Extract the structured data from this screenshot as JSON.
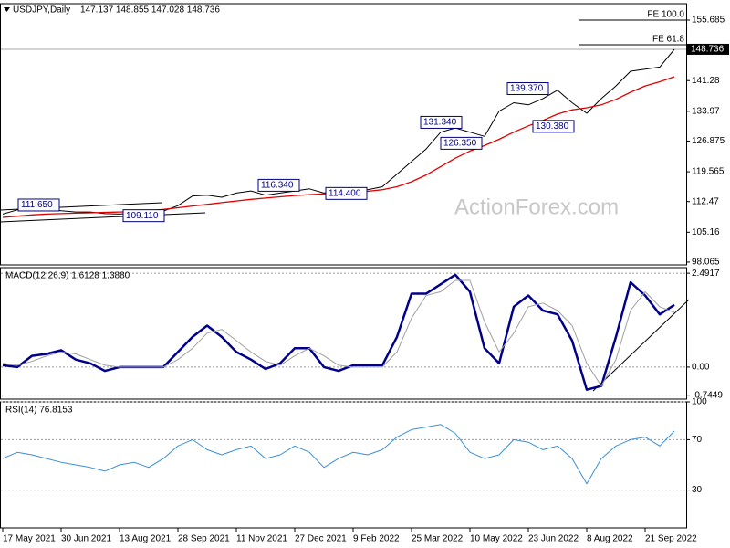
{
  "chart_data": [
    {
      "type": "line",
      "title": "USDJPY,Daily",
      "subtitle": "147.137 148.855 147.028 148.736",
      "watermark": "ActionForex.com",
      "ylim": [
        97.4,
        159.6
      ],
      "yticks": [
        98.065,
        105.16,
        112.47,
        119.565,
        126.875,
        133.97,
        141.28,
        155.685
      ],
      "grid": false,
      "last_price": 148.736,
      "series": [
        {
          "color": "#000000",
          "values": [
            109.5,
            110.5,
            111.0,
            110.8,
            110.3,
            110.0,
            110.0,
            109.6,
            109.5,
            109.8,
            110.0,
            110.2,
            111.5,
            113.8,
            114.0,
            113.5,
            114.5,
            115.0,
            114.0,
            114.5,
            115.0,
            115.5,
            114.5,
            115.0,
            115.5,
            115.3,
            116.0,
            119.0,
            122.0,
            125.0,
            129.0,
            130.0,
            129.0,
            128.0,
            134.0,
            136.0,
            135.5,
            137.0,
            139.0,
            136.0,
            133.5,
            137.0,
            140.0,
            143.5,
            144.0,
            144.5,
            148.736
          ]
        },
        {
          "color": "#e00000",
          "values": [
            108.7,
            109.0,
            109.3,
            109.5,
            109.6,
            109.7,
            109.8,
            109.9,
            110.0,
            110.1,
            110.3,
            110.6,
            111.0,
            111.4,
            111.8,
            112.2,
            112.6,
            113.0,
            113.3,
            113.6,
            113.9,
            114.1,
            114.3,
            114.5,
            114.7,
            114.9,
            115.3,
            116.0,
            117.2,
            118.8,
            120.8,
            122.8,
            124.5,
            125.8,
            127.3,
            129.0,
            130.5,
            131.8,
            133.3,
            134.3,
            134.8,
            135.5,
            136.8,
            138.5,
            140.0,
            141.0,
            142.2
          ]
        }
      ],
      "annotations": [
        {
          "value": 111.65,
          "label": "111.650"
        },
        {
          "value": 109.11,
          "label": "109.110"
        },
        {
          "value": 116.34,
          "label": "116.340"
        },
        {
          "value": 114.4,
          "label": "114.400"
        },
        {
          "value": 131.34,
          "label": "131.340"
        },
        {
          "value": 126.35,
          "label": "126.350"
        },
        {
          "value": 139.37,
          "label": "139.370"
        },
        {
          "value": 130.38,
          "label": "130.380"
        }
      ],
      "fe_levels": [
        {
          "value": 155.685,
          "label": "FE 100.0"
        },
        {
          "value": 149.8,
          "label": "FE 61.8"
        }
      ]
    },
    {
      "type": "line",
      "title": "MACD(12,26,9) 1.6128 1.3880",
      "ylim": [
        -0.85,
        2.64
      ],
      "yticks": [
        2.4917,
        {
          "value": 0,
          "label": "0.00"
        },
        -0.7449
      ],
      "grid": true,
      "series": [
        {
          "color": "#00008b",
          "values": [
            0.05,
            0.0,
            0.3,
            0.35,
            0.45,
            0.2,
            0.1,
            -0.1,
            0.0,
            0.0,
            0.0,
            0.0,
            0.4,
            0.8,
            1.1,
            0.8,
            0.4,
            0.2,
            -0.05,
            0.1,
            0.5,
            0.5,
            0.0,
            -0.1,
            0.05,
            0.05,
            0.05,
            0.8,
            1.95,
            1.95,
            2.2,
            2.45,
            2.0,
            0.5,
            0.1,
            1.6,
            1.9,
            1.5,
            1.4,
            0.7,
            -0.6,
            -0.5,
            0.8,
            2.25,
            1.9,
            1.4,
            1.65
          ]
        },
        {
          "color": "#a0a0a0",
          "values": [
            0.1,
            0.05,
            0.15,
            0.3,
            0.4,
            0.35,
            0.2,
            0.05,
            0.0,
            0.0,
            0.0,
            0.0,
            0.2,
            0.5,
            0.9,
            1.0,
            0.7,
            0.4,
            0.15,
            0.05,
            0.3,
            0.5,
            0.3,
            0.05,
            0.0,
            0.0,
            0.0,
            0.4,
            1.3,
            1.9,
            2.0,
            2.3,
            2.3,
            1.2,
            0.4,
            0.9,
            1.6,
            1.7,
            1.5,
            1.1,
            0.1,
            -0.5,
            0.2,
            1.5,
            2.0,
            1.6,
            1.45
          ]
        }
      ]
    },
    {
      "type": "line",
      "title": "RSI(14) 76.8153",
      "ylim": [
        0,
        100
      ],
      "yticks": [
        100,
        70,
        30
      ],
      "grid": true,
      "categories": [
        "17 May 2021",
        null,
        null,
        null,
        "30 Jun 2021",
        null,
        null,
        null,
        "13 Aug 2021",
        null,
        null,
        null,
        "28 Sep 2021",
        null,
        null,
        null,
        "11 Nov 2021",
        null,
        null,
        null,
        "27 Dec 2021",
        null,
        null,
        null,
        "9 Feb 2022",
        null,
        null,
        null,
        "25 Mar 2022",
        null,
        null,
        null,
        "10 May 2022",
        null,
        null,
        null,
        "23 Jun 2022",
        null,
        null,
        null,
        "8 Aug 2022",
        null,
        null,
        null,
        "21 Sep 2022",
        null,
        null
      ],
      "series": [
        {
          "color": "#3a8fd8",
          "values": [
            55,
            60,
            58,
            55,
            52,
            50,
            48,
            45,
            50,
            52,
            48,
            55,
            65,
            70,
            62,
            58,
            62,
            65,
            55,
            58,
            65,
            60,
            48,
            55,
            60,
            58,
            62,
            72,
            78,
            80,
            82,
            75,
            60,
            55,
            58,
            70,
            68,
            62,
            65,
            55,
            35,
            55,
            65,
            70,
            72,
            65,
            76.8153
          ]
        }
      ]
    }
  ]
}
